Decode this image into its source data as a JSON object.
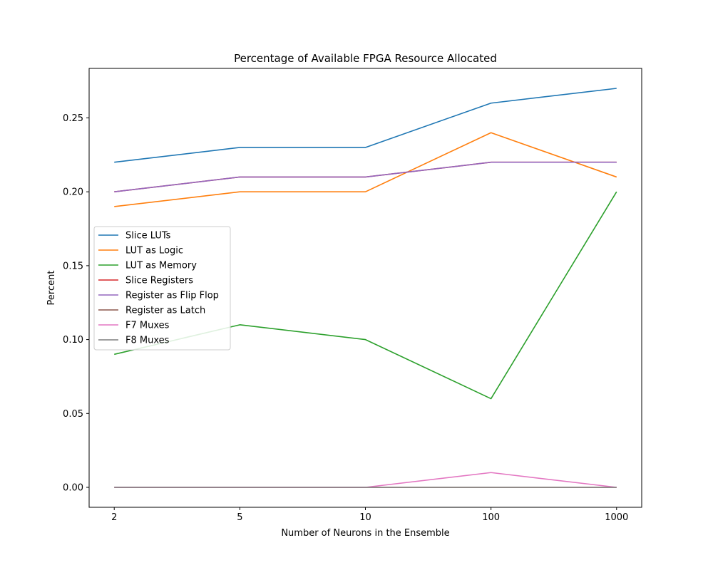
{
  "chart_data": {
    "type": "line",
    "title": "Percentage of Available FPGA Resource Allocated",
    "xlabel": "Number of Neurons in the Ensemble",
    "ylabel": "Percent",
    "categories": [
      "2",
      "5",
      "10",
      "100",
      "1000"
    ],
    "ylim": [
      -0.0135,
      0.2835
    ],
    "yticks": [
      "0.00",
      "0.05",
      "0.10",
      "0.15",
      "0.20",
      "0.25"
    ],
    "grid": false,
    "legend_position": "center-left",
    "series": [
      {
        "name": "Slice LUTs",
        "color": "#1f77b4",
        "values": [
          0.22,
          0.23,
          0.23,
          0.26,
          0.27
        ]
      },
      {
        "name": "LUT as Logic",
        "color": "#ff7f0e",
        "values": [
          0.19,
          0.2,
          0.2,
          0.24,
          0.21
        ]
      },
      {
        "name": "LUT as Memory",
        "color": "#2ca02c",
        "values": [
          0.09,
          0.11,
          0.1,
          0.06,
          0.2
        ]
      },
      {
        "name": "Slice Registers",
        "color": "#d62728",
        "values": [
          0.2,
          0.21,
          0.21,
          0.22,
          0.22
        ]
      },
      {
        "name": "Register as Flip Flop",
        "color": "#9467bd",
        "values": [
          0.2,
          0.21,
          0.21,
          0.22,
          0.22
        ]
      },
      {
        "name": "Register as Latch",
        "color": "#8c564b",
        "values": [
          0.0,
          0.0,
          0.0,
          0.0,
          0.0
        ]
      },
      {
        "name": "F7 Muxes",
        "color": "#e377c2",
        "values": [
          0.0,
          0.0,
          0.0,
          0.01,
          0.0
        ]
      },
      {
        "name": "F8 Muxes",
        "color": "#7f7f7f",
        "values": [
          0.0,
          0.0,
          0.0,
          0.0,
          0.0
        ]
      }
    ]
  }
}
